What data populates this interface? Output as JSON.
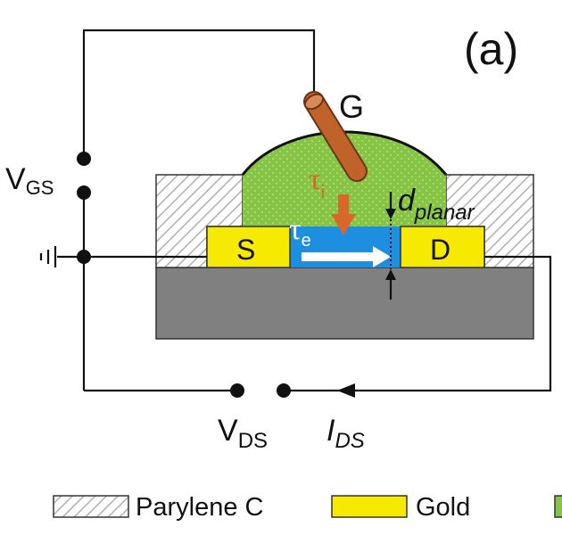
{
  "panel_label": "(a)",
  "labels": {
    "gate": "G",
    "source": "S",
    "drain": "D",
    "vgs": {
      "main": "V",
      "sub": "GS"
    },
    "vds": {
      "main": "V",
      "sub": "DS"
    },
    "ids": {
      "main": "I",
      "sub": "DS"
    },
    "tau_i": {
      "main": "τ",
      "sub": "i"
    },
    "tau_e": {
      "main": "τ",
      "sub": "e"
    },
    "d_planar": {
      "main": "d",
      "sub": "planar"
    }
  },
  "legend": [
    {
      "label": "Parylene C",
      "swatch": "hatch"
    },
    {
      "label": "Gold",
      "swatch": "#f5ea00"
    }
  ],
  "colors": {
    "parylene_hatch": "#b0b0b0",
    "gold": "#f5ea00",
    "electrolyte": "#86c443",
    "channel": "#1e8fe0",
    "substrate": "#808080",
    "gate_electrode": "#c0632b",
    "ion_arrow": "#d9662a",
    "wire": "#111111"
  }
}
